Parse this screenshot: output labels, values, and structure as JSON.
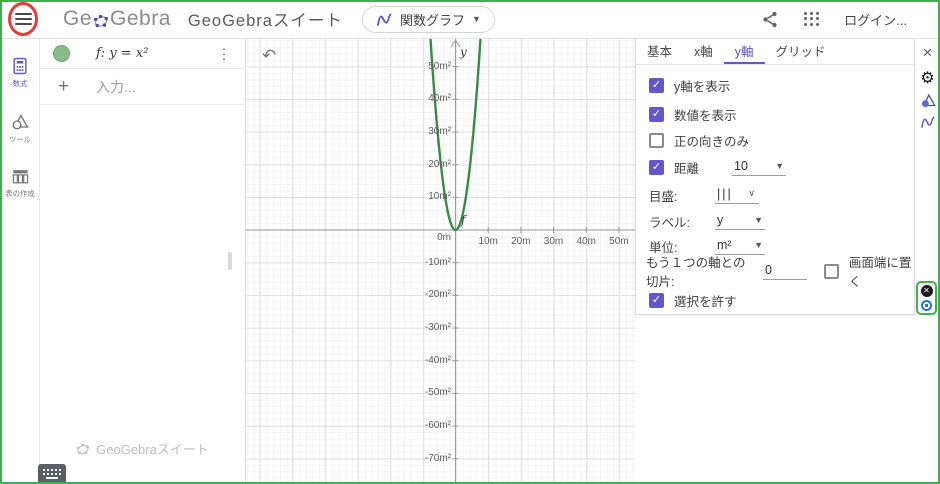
{
  "theme": {
    "accent": "#6357c9",
    "curve_green": "#378b44",
    "annotation_red": "#e23b3b",
    "frame_green": "#3db14b"
  },
  "topbar": {
    "logo_ge": "Ge",
    "logo_gebra": "Gebra",
    "logo": "GeoGebra",
    "title": "GeoGebraスイート",
    "app_switcher": "関数グラフ",
    "login": "ログイン..."
  },
  "sidebar": {
    "items": [
      {
        "label": "数式"
      },
      {
        "label": "ツール"
      },
      {
        "label": "表の作成"
      }
    ]
  },
  "algebra": {
    "rows": [
      {
        "expression": "f: y = x²"
      }
    ],
    "input_placeholder": "入力...",
    "watermark": "GeoGebraスイート"
  },
  "chart_data": {
    "type": "line",
    "title": "",
    "series": [
      {
        "name": "f",
        "expression": "y = x²",
        "color": "#378b44"
      }
    ],
    "axis_label_y": "y",
    "x_unit": "m",
    "y_unit": "m²",
    "xlim": [
      -64,
      55
    ],
    "ylim": [
      -78,
      58
    ],
    "grid": "major+minor, major every 10",
    "x_ticks": [
      {
        "v": 10,
        "label": "10m"
      },
      {
        "v": 20,
        "label": "20m"
      },
      {
        "v": 30,
        "label": "30m"
      },
      {
        "v": 40,
        "label": "40m"
      },
      {
        "v": 50,
        "label": "50m"
      }
    ],
    "y_ticks": [
      {
        "v": 50,
        "label": "50m²"
      },
      {
        "v": 40,
        "label": "40m²"
      },
      {
        "v": 30,
        "label": "30m²"
      },
      {
        "v": 20,
        "label": "20m²"
      },
      {
        "v": 10,
        "label": "10m²"
      },
      {
        "v": 0,
        "label": "0m"
      },
      {
        "v": -10,
        "label": "-10m²"
      },
      {
        "v": -20,
        "label": "-20m²"
      },
      {
        "v": -30,
        "label": "-30m²"
      },
      {
        "v": -40,
        "label": "-40m²"
      },
      {
        "v": -50,
        "label": "-50m²"
      },
      {
        "v": -60,
        "label": "-60m²"
      },
      {
        "v": -70,
        "label": "-70m²"
      }
    ]
  },
  "settings": {
    "tabs": [
      {
        "label": "基本"
      },
      {
        "label": "x軸"
      },
      {
        "label": "y軸"
      },
      {
        "label": "グリッド"
      }
    ],
    "active_tab": "y軸",
    "rows": {
      "show_axis": {
        "label": "y軸を表示",
        "checked": true
      },
      "show_numbers": {
        "label": "数値を表示",
        "checked": true
      },
      "positive_only": {
        "label": "正の向きのみ",
        "checked": false
      },
      "distance": {
        "label": "距離",
        "checked": true,
        "value": "10"
      },
      "ticks": {
        "label": "目盛:",
        "value": "|||"
      },
      "axis_label": {
        "label": "ラベル:",
        "value": "y"
      },
      "unit": {
        "label": "単位:",
        "value": "m²"
      },
      "cross_at": {
        "label": "もう１つの軸との切片:",
        "value": "0"
      },
      "stick_to_edge": {
        "label": "画面端に置く",
        "checked": false
      },
      "allow_selection": {
        "label": "選択を許す",
        "checked": true
      }
    }
  }
}
